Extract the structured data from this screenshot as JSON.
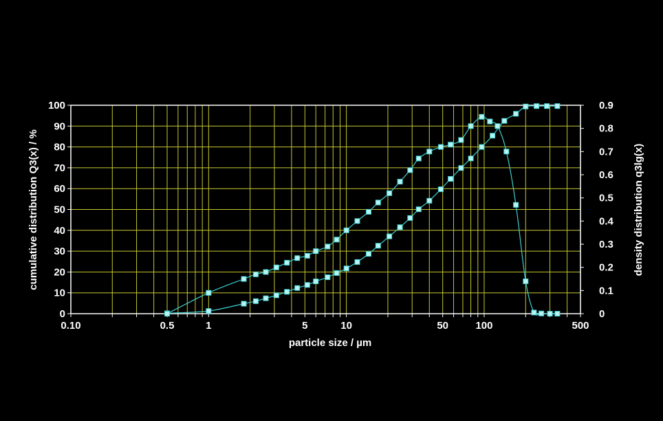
{
  "chart_data": {
    "type": "scatter",
    "xlabel": "particle size / µm",
    "ylabel_left": "cumulative distribution Q3(x) / %",
    "ylabel_right": "density distribution q3lg(x)",
    "x_scale": "log",
    "xlim": [
      0.1,
      500
    ],
    "ylim_left": [
      0,
      100
    ],
    "ylim_right": [
      0,
      0.9
    ],
    "x_tick_labels": [
      "0.10",
      "0.5",
      "1",
      "5",
      "10",
      "50",
      "100",
      "500"
    ],
    "x_tick_values": [
      0.1,
      0.5,
      1,
      5,
      10,
      50,
      100,
      500
    ],
    "y_left_tick_labels": [
      "0",
      "10",
      "20",
      "30",
      "40",
      "50",
      "60",
      "70",
      "80",
      "90",
      "100"
    ],
    "y_right_tick_labels": [
      "0",
      "0.1",
      "0.2",
      "0.3",
      "0.4",
      "0.5",
      "0.6",
      "0.7",
      "0.8",
      "0.9"
    ],
    "grid": true,
    "colors": {
      "background": "#000000",
      "frame": "#ffffff",
      "grid": "#c8c832",
      "series": "#40d0d0",
      "marker_fill": "#b8f4f4",
      "text": "#ffffff"
    },
    "series": [
      {
        "axis": "left",
        "x": [
          0.5,
          1.0,
          1.8,
          2.2,
          2.6,
          3.1,
          3.7,
          4.4,
          5.2,
          6.0,
          7.3,
          8.5,
          10.0,
          12.0,
          14.5,
          17.0,
          20.5,
          24.5,
          29.0,
          33.5,
          40.0,
          48.5,
          57.0,
          68.0,
          80.0,
          96.0,
          115.0,
          140.0,
          170.0,
          200.0,
          240.0,
          285.0,
          340.0
        ],
        "y": [
          0.2,
          1.3,
          4.8,
          6.0,
          7.4,
          8.8,
          10.5,
          12.3,
          13.8,
          15.5,
          17.5,
          19.5,
          21.7,
          24.8,
          28.7,
          32.6,
          37.1,
          41.5,
          45.9,
          50.1,
          54.2,
          59.7,
          64.7,
          69.9,
          74.5,
          80.0,
          85.4,
          92.5,
          95.9,
          99.4,
          99.6,
          99.6,
          99.6
        ]
      },
      {
        "axis": "right",
        "x": [
          0.5,
          1.0,
          1.8,
          2.2,
          2.6,
          3.1,
          3.7,
          4.4,
          5.2,
          6.0,
          7.3,
          8.5,
          10.0,
          12.0,
          14.5,
          17.0,
          20.5,
          24.5,
          29.0,
          33.5,
          40.0,
          48.5,
          57.0,
          68.0,
          80.0,
          96.0,
          110.0,
          125.0,
          145.0,
          170.0,
          200.0,
          230.0,
          260.0,
          300.0,
          340.0
        ],
        "y": [
          0.0,
          0.09,
          0.15,
          0.17,
          0.18,
          0.2,
          0.22,
          0.24,
          0.25,
          0.27,
          0.29,
          0.32,
          0.36,
          0.4,
          0.44,
          0.48,
          0.52,
          0.57,
          0.62,
          0.67,
          0.7,
          0.72,
          0.73,
          0.75,
          0.81,
          0.85,
          0.83,
          0.81,
          0.7,
          0.47,
          0.14,
          0.005,
          0.001,
          0.0,
          0.0
        ]
      }
    ]
  }
}
